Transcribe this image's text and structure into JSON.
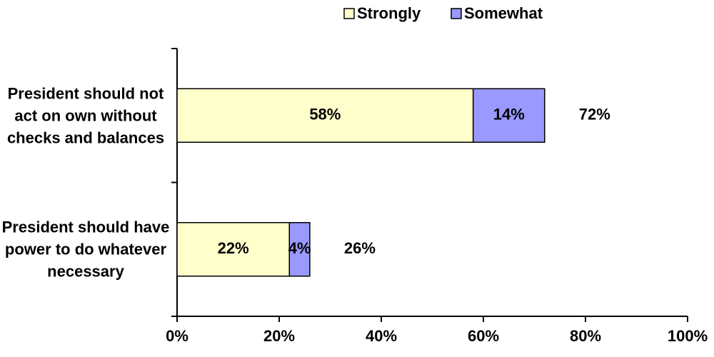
{
  "chart_data": {
    "type": "stacked_bar_horizontal",
    "categories": [
      "President should not act on own without checks and balances",
      "President should have power to do whatever necessary"
    ],
    "series": [
      {
        "name": "Strongly",
        "color": "#ffffcc",
        "values": [
          58,
          22
        ],
        "value_labels": [
          "58%",
          "22%"
        ]
      },
      {
        "name": "Somewhat",
        "color": "#9999ff",
        "values": [
          14,
          4
        ],
        "value_labels": [
          "14%",
          "4%"
        ]
      }
    ],
    "totals": [
      72,
      26
    ],
    "total_labels": [
      "72%",
      "26%"
    ],
    "xlim": [
      0,
      100
    ],
    "xticks": [
      {
        "value": 0,
        "label": "0%"
      },
      {
        "value": 20,
        "label": "20%"
      },
      {
        "value": 40,
        "label": "40%"
      },
      {
        "value": 60,
        "label": "60%"
      },
      {
        "value": 80,
        "label": "80%"
      },
      {
        "value": 100,
        "label": "100%"
      }
    ],
    "legend": "top"
  }
}
